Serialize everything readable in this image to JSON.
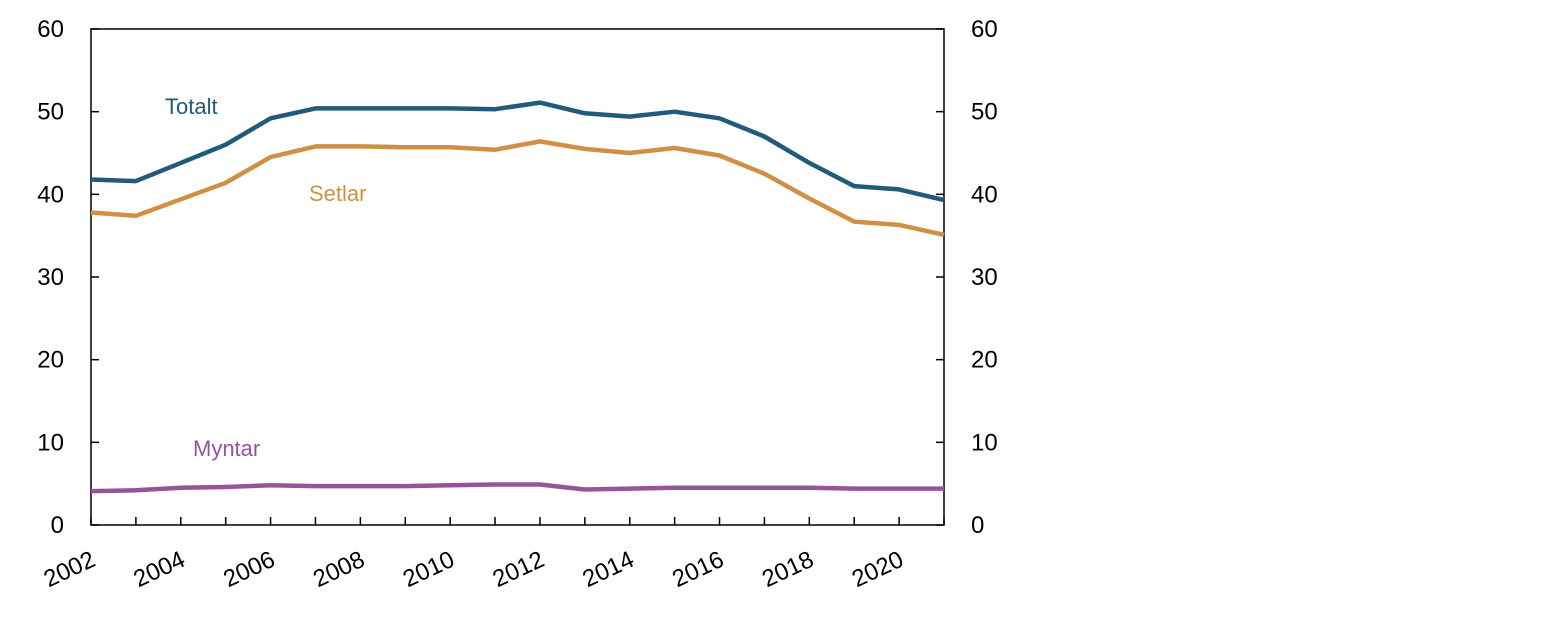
{
  "chart_data": {
    "type": "line",
    "title": "",
    "xlabel": "",
    "ylabel": "",
    "x": [
      2002,
      2003,
      2004,
      2005,
      2006,
      2007,
      2008,
      2009,
      2010,
      2011,
      2012,
      2013,
      2014,
      2015,
      2016,
      2017,
      2018,
      2019,
      2020,
      2021
    ],
    "x_tick_labels": [
      "2002",
      "2004",
      "2006",
      "2008",
      "2010",
      "2012",
      "2014",
      "2016",
      "2018",
      "2020"
    ],
    "ylim": [
      0,
      60
    ],
    "y_ticks": [
      "0",
      "10",
      "20",
      "30",
      "40",
      "50",
      "60"
    ],
    "y_axis_right": true,
    "grid": false,
    "series": [
      {
        "name": "Totalt",
        "color": "#215a7a",
        "values": [
          41.8,
          41.6,
          43.8,
          46.0,
          49.2,
          50.4,
          50.4,
          50.4,
          50.4,
          50.3,
          51.1,
          49.8,
          49.4,
          50.0,
          49.2,
          47.0,
          43.8,
          41.0,
          40.6,
          39.3
        ]
      },
      {
        "name": "Setlar",
        "color": "#d08f45",
        "values": [
          37.8,
          37.4,
          39.4,
          41.4,
          44.5,
          45.8,
          45.8,
          45.7,
          45.7,
          45.4,
          46.4,
          45.5,
          45.0,
          45.6,
          44.7,
          42.5,
          39.5,
          36.7,
          36.3,
          35.1
        ]
      },
      {
        "name": "Myntar",
        "color": "#96559a",
        "values": [
          4.1,
          4.2,
          4.5,
          4.6,
          4.8,
          4.7,
          4.7,
          4.7,
          4.8,
          4.9,
          4.9,
          4.3,
          4.4,
          4.5,
          4.5,
          4.5,
          4.5,
          4.4,
          4.4,
          4.4
        ]
      }
    ]
  }
}
